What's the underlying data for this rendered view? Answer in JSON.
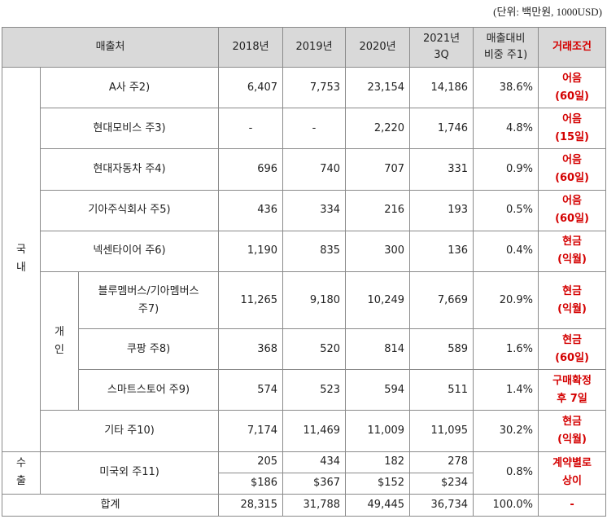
{
  "unit_note": "(단위: 백만원, 1000USD)",
  "headers": {
    "customer": "매출처",
    "y2018": "2018년",
    "y2019": "2019년",
    "y2020": "2020년",
    "y2021_l1": "2021년",
    "y2021_l2": "3Q",
    "ratio_l1": "매출대비",
    "ratio_l2": "비중 주1)",
    "terms": "거래조건"
  },
  "groups": {
    "domestic_l1": "국",
    "domestic_l2": "내",
    "individual_l1": "개",
    "individual_l2": "인",
    "export_l1": "수",
    "export_l2": "출"
  },
  "rows": [
    {
      "name": "A사 주2)",
      "y2018": "6,407",
      "y2019": "7,753",
      "y2020": "23,154",
      "y2021": "14,186",
      "ratio": "38.6%",
      "terms_l1": "어음",
      "terms_l2": "(60일)"
    },
    {
      "name": "현대모비스 주3)",
      "y2018": "-",
      "y2019": "-",
      "y2020": "2,220",
      "y2021": "1,746",
      "ratio": "4.8%",
      "terms_l1": "어음",
      "terms_l2": "(15일)"
    },
    {
      "name": "현대자동차 주4)",
      "y2018": "696",
      "y2019": "740",
      "y2020": "707",
      "y2021": "331",
      "ratio": "0.9%",
      "terms_l1": "어음",
      "terms_l2": "(60일)"
    },
    {
      "name": "기아주식회사 주5)",
      "y2018": "436",
      "y2019": "334",
      "y2020": "216",
      "y2021": "193",
      "ratio": "0.5%",
      "terms_l1": "어음",
      "terms_l2": "(60일)"
    },
    {
      "name": "넥센타이어 주6)",
      "y2018": "1,190",
      "y2019": "835",
      "y2020": "300",
      "y2021": "136",
      "ratio": "0.4%",
      "terms_l1": "현금",
      "terms_l2": "(익월)"
    },
    {
      "name_l1": "블루멤버스/기아멤버스",
      "name_l2": "주7)",
      "y2018": "11,265",
      "y2019": "9,180",
      "y2020": "10,249",
      "y2021": "7,669",
      "ratio": "20.9%",
      "terms_l1": "현금",
      "terms_l2": "(익월)"
    },
    {
      "name": "쿠팡 주8)",
      "y2018": "368",
      "y2019": "520",
      "y2020": "814",
      "y2021": "589",
      "ratio": "1.6%",
      "terms_l1": "현금",
      "terms_l2": "(60일)"
    },
    {
      "name": "스마트스토어 주9)",
      "y2018": "574",
      "y2019": "523",
      "y2020": "594",
      "y2021": "511",
      "ratio": "1.4%",
      "terms_l1": "구매확정",
      "terms_l2": "후 7일"
    },
    {
      "name": "기타 주10)",
      "y2018": "7,174",
      "y2019": "11,469",
      "y2020": "11,009",
      "y2021": "11,095",
      "ratio": "30.2%",
      "terms_l1": "현금",
      "terms_l2": "(익월)"
    }
  ],
  "export_row": {
    "name": "미국외 주11)",
    "krw": {
      "y2018": "205",
      "y2019": "434",
      "y2020": "182",
      "y2021": "278"
    },
    "usd": {
      "y2018": "$186",
      "y2019": "$367",
      "y2020": "$152",
      "y2021": "$234"
    },
    "ratio": "0.8%",
    "terms_l1": "계약별로",
    "terms_l2": "상이"
  },
  "total_row": {
    "name": "합계",
    "y2018": "28,315",
    "y2019": "31,788",
    "y2020": "49,445",
    "y2021": "36,734",
    "ratio": "100.0%",
    "terms": "-"
  }
}
